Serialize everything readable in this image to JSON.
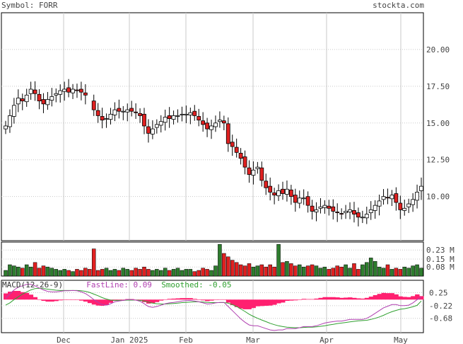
{
  "header": {
    "symbol": "Symbol: FORR",
    "site": "stockta.com"
  },
  "price_axis_labels": [
    "20.00",
    "17.50",
    "15.00",
    "12.50",
    "10.00"
  ],
  "volume_axis_labels": [
    "0.23 M",
    "0.15 M",
    "0.08 M"
  ],
  "macd_axis_labels": [
    "0.25",
    "-0.22",
    "-0.68"
  ],
  "x_axis_labels": [
    "Dec",
    "Jan 2025",
    "Feb",
    "Mar",
    "Apr",
    "May"
  ],
  "macd_header": {
    "title": "MACD(12-26-9)",
    "fast_label": "FastLine: 0.09",
    "smooth_label": "Smoothed: -0.05"
  },
  "colors": {
    "up": "#2e7d2e",
    "down": "#e02020",
    "fast": "#b040b0",
    "smooth": "#30a030",
    "hist": "#ff2070",
    "grid": "#c8c8c8"
  },
  "chart_data": [
    {
      "type": "candlestick",
      "ylim": [
        7.0,
        22.5
      ],
      "note": "closing prices (approx, daily, mid-Nov 2024 to early May 2025)",
      "close": [
        14.8,
        15.5,
        16.2,
        16.7,
        16.5,
        16.9,
        17.3,
        17.0,
        16.5,
        16.3,
        16.6,
        16.8,
        17.0,
        17.2,
        17.3,
        17.1,
        17.3,
        17.2,
        17.1,
        16.9,
        16.4,
        15.9,
        15.5,
        15.2,
        15.3,
        15.6,
        15.9,
        15.8,
        15.8,
        15.9,
        15.8,
        15.7,
        15.5,
        14.8,
        14.3,
        14.6,
        14.9,
        15.1,
        15.4,
        15.3,
        15.5,
        15.5,
        15.6,
        15.6,
        15.7,
        15.5,
        15.2,
        14.9,
        14.6,
        14.8,
        15.0,
        15.2,
        15.0,
        13.6,
        13.4,
        13.0,
        12.6,
        12.0,
        11.5,
        11.8,
        12.0,
        11.1,
        10.6,
        10.3,
        10.1,
        10.4,
        10.2,
        10.5,
        10.0,
        9.6,
        9.9,
        9.9,
        9.4,
        9.0,
        9.1,
        9.3,
        9.4,
        9.2,
        9.0,
        8.9,
        8.8,
        9.0,
        9.1,
        8.8,
        8.6,
        8.6,
        8.8,
        9.1,
        9.4,
        9.7,
        10.0,
        9.9,
        10.1,
        9.6,
        9.1,
        9.2,
        9.5,
        9.8,
        10.3,
        10.7
      ],
      "volume": [
        0.05,
        0.1,
        0.09,
        0.08,
        0.07,
        0.1,
        0.08,
        0.12,
        0.07,
        0.09,
        0.08,
        0.07,
        0.06,
        0.05,
        0.06,
        0.05,
        0.04,
        0.06,
        0.05,
        0.07,
        0.06,
        0.24,
        0.05,
        0.06,
        0.07,
        0.05,
        0.06,
        0.05,
        0.07,
        0.06,
        0.05,
        0.07,
        0.06,
        0.08,
        0.06,
        0.05,
        0.06,
        0.05,
        0.07,
        0.05,
        0.06,
        0.07,
        0.05,
        0.06,
        0.06,
        0.04,
        0.05,
        0.07,
        0.06,
        0.05,
        0.09,
        0.28,
        0.2,
        0.17,
        0.14,
        0.12,
        0.1,
        0.09,
        0.11,
        0.08,
        0.09,
        0.1,
        0.08,
        0.1,
        0.08,
        0.28,
        0.12,
        0.13,
        0.11,
        0.09,
        0.1,
        0.08,
        0.09,
        0.1,
        0.09,
        0.07,
        0.08,
        0.06,
        0.07,
        0.09,
        0.08,
        0.1,
        0.07,
        0.11,
        0.06,
        0.1,
        0.12,
        0.16,
        0.13,
        0.08,
        0.07,
        0.1,
        0.06,
        0.07,
        0.06,
        0.08,
        0.07,
        0.09,
        0.1,
        0.07
      ],
      "macd_fast": [
        0.05,
        0.2,
        0.35,
        0.45,
        0.5,
        0.55,
        0.55,
        0.5,
        0.42,
        0.35,
        0.3,
        0.28,
        0.28,
        0.3,
        0.32,
        0.32,
        0.33,
        0.32,
        0.28,
        0.22,
        0.12,
        0.0,
        -0.1,
        -0.18,
        -0.2,
        -0.15,
        -0.08,
        -0.05,
        -0.03,
        0.0,
        0.0,
        -0.02,
        -0.06,
        -0.15,
        -0.25,
        -0.28,
        -0.25,
        -0.2,
        -0.15,
        -0.12,
        -0.1,
        -0.08,
        -0.05,
        -0.04,
        -0.03,
        -0.05,
        -0.08,
        -0.12,
        -0.16,
        -0.15,
        -0.12,
        -0.1,
        -0.1,
        -0.25,
        -0.4,
        -0.55,
        -0.7,
        -0.82,
        -0.92,
        -0.95,
        -0.95,
        -1.0,
        -1.05,
        -1.1,
        -1.12,
        -1.1,
        -1.1,
        -1.05,
        -1.05,
        -1.05,
        -1.02,
        -0.98,
        -0.98,
        -0.98,
        -0.95,
        -0.9,
        -0.85,
        -0.82,
        -0.8,
        -0.78,
        -0.78,
        -0.75,
        -0.72,
        -0.72,
        -0.72,
        -0.72,
        -0.68,
        -0.6,
        -0.5,
        -0.4,
        -0.3,
        -0.24,
        -0.18,
        -0.18,
        -0.22,
        -0.22,
        -0.2,
        -0.12,
        0.0,
        0.09
      ],
      "macd_smooth": [
        -0.2,
        -0.12,
        0.0,
        0.1,
        0.2,
        0.28,
        0.35,
        0.4,
        0.41,
        0.4,
        0.38,
        0.36,
        0.34,
        0.33,
        0.33,
        0.33,
        0.33,
        0.33,
        0.32,
        0.3,
        0.26,
        0.2,
        0.14,
        0.07,
        0.02,
        -0.02,
        -0.03,
        -0.03,
        -0.03,
        -0.02,
        -0.02,
        -0.02,
        -0.03,
        -0.05,
        -0.09,
        -0.13,
        -0.15,
        -0.16,
        -0.16,
        -0.15,
        -0.14,
        -0.13,
        -0.11,
        -0.1,
        -0.09,
        -0.08,
        -0.08,
        -0.09,
        -0.1,
        -0.11,
        -0.11,
        -0.11,
        -0.11,
        -0.13,
        -0.18,
        -0.25,
        -0.34,
        -0.43,
        -0.53,
        -0.61,
        -0.68,
        -0.74,
        -0.8,
        -0.86,
        -0.91,
        -0.95,
        -0.98,
        -1.0,
        -1.01,
        -1.02,
        -1.02,
        -1.01,
        -1.0,
        -1.0,
        -0.99,
        -0.97,
        -0.95,
        -0.92,
        -0.9,
        -0.87,
        -0.85,
        -0.83,
        -0.81,
        -0.79,
        -0.77,
        -0.76,
        -0.75,
        -0.72,
        -0.68,
        -0.63,
        -0.57,
        -0.5,
        -0.44,
        -0.39,
        -0.35,
        -0.33,
        -0.3,
        -0.26,
        -0.21,
        -0.05
      ]
    }
  ]
}
